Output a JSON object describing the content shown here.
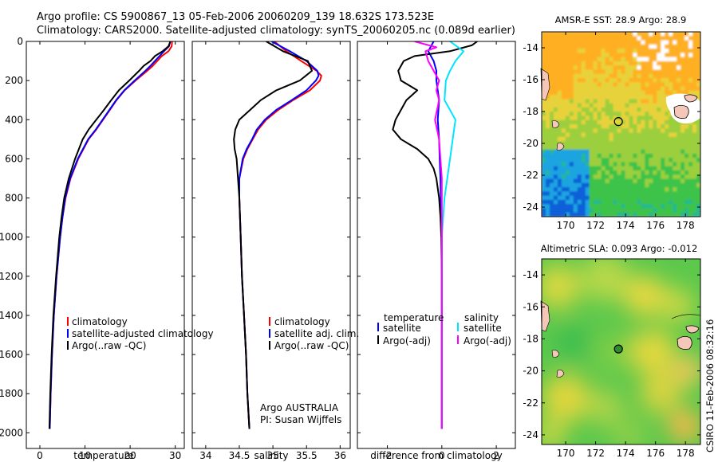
{
  "header": {
    "line1": "Argo profile: CS 5900867_13 05-Feb-2006 20060209_139 18.632S 173.523E",
    "line2": "Climatology: CARS2000. Satellite-adjusted climatology: synTS_20060205.nc (0.089d earlier)"
  },
  "footer_stamp": "CSIRO 11-Feb-2006 08:32:16",
  "colors": {
    "clim": "#ff0000",
    "sat": "#0000ff",
    "argo": "#000000",
    "sal_sat": "#00e5ff",
    "sal_argo": "#ff00ff"
  },
  "depth_ticks": [
    0,
    200,
    400,
    600,
    800,
    1000,
    1200,
    1400,
    1600,
    1800,
    2000
  ],
  "chart_data": [
    {
      "type": "line",
      "id": "temperature",
      "xlabel": "temperature",
      "xlim": [
        -3,
        32
      ],
      "ylim": [
        2080,
        0
      ],
      "xticks": [
        0,
        10,
        20,
        30
      ],
      "legend": [
        "climatology",
        "satellite-adjusted climatology",
        "Argo(..raw -QC)"
      ],
      "series": [
        {
          "name": "climatology",
          "color": "clim",
          "depth": [
            0,
            25,
            50,
            75,
            100,
            125,
            150,
            200,
            250,
            300,
            350,
            400,
            450,
            500,
            600,
            700,
            800,
            900,
            1000,
            1200,
            1400,
            1600,
            1800,
            1980
          ],
          "values": [
            29.3,
            29.2,
            28.5,
            27,
            26,
            25,
            23.8,
            21.2,
            18.8,
            17,
            15.5,
            14,
            12.5,
            10.8,
            8.5,
            6.8,
            5.7,
            5,
            4.5,
            3.7,
            3.1,
            2.7,
            2.4,
            2.2
          ]
        },
        {
          "name": "satellite-adjusted climatology",
          "color": "sat",
          "depth": [
            0,
            25,
            50,
            75,
            100,
            125,
            150,
            200,
            250,
            300,
            350,
            400,
            450,
            500,
            600,
            700,
            800,
            900,
            1000,
            1200,
            1400,
            1600,
            1800,
            1980
          ],
          "values": [
            28.9,
            28.6,
            27.5,
            26.5,
            25.5,
            24.5,
            23.4,
            21,
            18.7,
            16.9,
            15.4,
            13.9,
            12.4,
            10.7,
            8.4,
            6.7,
            5.6,
            5,
            4.5,
            3.7,
            3.1,
            2.7,
            2.4,
            2.2
          ]
        },
        {
          "name": "Argo(..raw -QC)",
          "color": "argo",
          "depth": [
            0,
            25,
            50,
            75,
            100,
            125,
            150,
            200,
            250,
            300,
            350,
            400,
            450,
            500,
            600,
            700,
            800,
            900,
            1000,
            1200,
            1400,
            1600,
            1800,
            1980
          ],
          "values": [
            28.9,
            28.5,
            27.2,
            25.5,
            24.5,
            23,
            22,
            19.8,
            17.5,
            15.8,
            14.2,
            12.5,
            10.8,
            9.5,
            7.8,
            6.4,
            5.4,
            4.8,
            4.3,
            3.6,
            3,
            2.6,
            2.3,
            2.1
          ]
        }
      ]
    },
    {
      "type": "line",
      "id": "salinity",
      "xlabel": "salinity",
      "xlim": [
        33.8,
        36.15
      ],
      "ylim": [
        2080,
        0
      ],
      "xticks": [
        34,
        34.5,
        35,
        35.5,
        36
      ],
      "legend": [
        "climatology",
        "satellite adj. clim.",
        "Argo(..raw -QC)"
      ],
      "annotation": [
        "Argo AUSTRALIA",
        "PI: Susan Wijffels"
      ],
      "series": [
        {
          "name": "climatology",
          "color": "clim",
          "depth": [
            0,
            50,
            100,
            150,
            175,
            200,
            250,
            300,
            350,
            400,
            450,
            500,
            550,
            600,
            700,
            800,
            1000,
            1200,
            1400,
            1600,
            1800,
            1980
          ],
          "values": [
            35.02,
            35.2,
            35.42,
            35.65,
            35.72,
            35.7,
            35.55,
            35.3,
            35.08,
            34.9,
            34.78,
            34.7,
            34.62,
            34.56,
            34.5,
            34.5,
            34.52,
            34.54,
            34.57,
            34.6,
            34.62,
            34.65
          ]
        },
        {
          "name": "satellite adj. clim.",
          "color": "sat",
          "depth": [
            0,
            50,
            100,
            150,
            175,
            200,
            250,
            300,
            350,
            400,
            450,
            500,
            550,
            600,
            700,
            800,
            1000,
            1200,
            1400,
            1600,
            1800,
            1980
          ],
          "values": [
            34.98,
            35.25,
            35.5,
            35.66,
            35.68,
            35.64,
            35.5,
            35.28,
            35.05,
            34.88,
            34.76,
            34.69,
            34.61,
            34.55,
            34.5,
            34.5,
            34.52,
            34.54,
            34.57,
            34.6,
            34.62,
            34.65
          ]
        },
        {
          "name": "Argo(..raw -QC)",
          "color": "argo",
          "depth": [
            0,
            50,
            100,
            150,
            200,
            250,
            300,
            350,
            400,
            450,
            500,
            550,
            600,
            700,
            800,
            1000,
            1200,
            1400,
            1600,
            1800,
            1980
          ],
          "values": [
            34.9,
            35.15,
            35.52,
            35.58,
            35.4,
            35.05,
            34.82,
            34.66,
            34.5,
            34.44,
            34.42,
            34.43,
            34.46,
            34.48,
            34.5,
            34.52,
            34.54,
            34.57,
            34.6,
            34.62,
            34.65
          ]
        }
      ]
    },
    {
      "type": "line",
      "id": "difference",
      "xlabel": "difference from climatology",
      "xlim": [
        -3.1,
        2.7
      ],
      "ylim": [
        2080,
        0
      ],
      "xticks": [
        -2,
        0,
        2
      ],
      "legend_left": [
        "temperature",
        "satellite",
        "Argo(-adj)"
      ],
      "legend_right": [
        "salinity",
        "satellite",
        "Argo(-adj)"
      ],
      "series": [
        {
          "name": "temperature satellite",
          "color": "sat",
          "depth": [
            0,
            50,
            100,
            150,
            200,
            300,
            400,
            500,
            600,
            700,
            800,
            1000,
            1400,
            1800,
            1980
          ],
          "values": [
            -0.3,
            -0.5,
            -0.3,
            -0.2,
            -0.2,
            -0.1,
            -0.15,
            -0.1,
            -0.08,
            -0.05,
            -0.04,
            0,
            0,
            0,
            0
          ]
        },
        {
          "name": "temperature Argo(-adj)",
          "color": "argo",
          "depth": [
            0,
            20,
            50,
            75,
            100,
            150,
            200,
            250,
            300,
            350,
            400,
            450,
            500,
            550,
            600,
            650,
            700,
            800,
            900,
            1000,
            1200,
            1400,
            1600,
            1800,
            1980
          ],
          "values": [
            1.3,
            1.1,
            0.3,
            -1,
            -1.4,
            -1.6,
            -1.5,
            -0.9,
            -1.3,
            -1.5,
            -1.7,
            -1.8,
            -1.5,
            -0.9,
            -0.5,
            -0.3,
            -0.2,
            -0.1,
            -0.05,
            -0.02,
            0,
            0,
            0,
            0,
            0
          ]
        },
        {
          "name": "salinity satellite",
          "color": "sal_sat",
          "depth": [
            0,
            50,
            100,
            150,
            200,
            300,
            400,
            500,
            600,
            800,
            1000,
            1400,
            1800,
            1980
          ],
          "values": [
            0.3,
            0.8,
            0.5,
            0.3,
            0.15,
            0.1,
            0.5,
            0.4,
            0.3,
            0.1,
            0,
            0,
            0,
            0
          ]
        },
        {
          "name": "salinity Argo(-adj)",
          "color": "sal_argo",
          "depth": [
            0,
            30,
            50,
            100,
            150,
            200,
            250,
            300,
            400,
            500,
            600,
            700,
            800,
            1000,
            1400,
            1800,
            1980
          ],
          "values": [
            -1,
            -0.2,
            -0.6,
            -0.5,
            -0.3,
            -0.1,
            -0.2,
            -0.1,
            -0.25,
            -0.1,
            -0.05,
            0,
            0,
            0,
            0,
            0,
            0
          ]
        }
      ]
    },
    {
      "type": "heatmap",
      "id": "sst-map",
      "title": "AMSR-E SST: 28.9 Argo: 28.9",
      "xlim": [
        168.4,
        179
      ],
      "ylim": [
        -24.6,
        -13
      ],
      "xticks": [
        170,
        172,
        174,
        176,
        178
      ],
      "yticks": [
        -14,
        -16,
        -18,
        -20,
        -22,
        -24
      ],
      "marker": {
        "lon": 173.523,
        "lat": -18.632
      }
    },
    {
      "type": "heatmap",
      "id": "sla-map",
      "title": "Altimetric SLA: 0.093 Argo: -0.012",
      "xlim": [
        168.4,
        179
      ],
      "ylim": [
        -24.6,
        -13
      ],
      "xticks": [
        170,
        172,
        174,
        176,
        178
      ],
      "yticks": [
        -14,
        -16,
        -18,
        -20,
        -22,
        -24
      ],
      "marker": {
        "lon": 173.523,
        "lat": -18.632
      }
    }
  ]
}
